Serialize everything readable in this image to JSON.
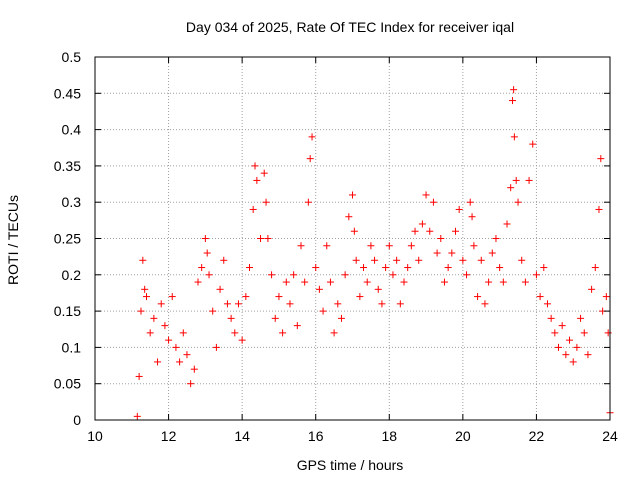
{
  "chart_data": {
    "type": "scatter",
    "title": "Day 034 of 2025, Rate Of TEC Index for receiver iqal",
    "xlabel": "GPS time / hours",
    "ylabel": "ROTI / TECUs",
    "xlim": [
      10,
      24
    ],
    "ylim": [
      0,
      0.5
    ],
    "x_ticks": [
      10,
      12,
      14,
      16,
      18,
      20,
      22,
      24
    ],
    "x_tick_labels": [
      "10",
      "12",
      "14",
      "16",
      "18",
      "20",
      "22",
      "24"
    ],
    "y_ticks": [
      0,
      0.05,
      0.1,
      0.15,
      0.2,
      0.25,
      0.3,
      0.35,
      0.4,
      0.45,
      0.5
    ],
    "y_tick_labels": [
      "0",
      "0.05",
      "0.1",
      "0.15",
      "0.2",
      "0.25",
      "0.3",
      "0.35",
      "0.4",
      "0.45",
      "0.5"
    ],
    "grid": true,
    "marker": "+",
    "series": [
      {
        "name": "ROTI",
        "color": "#ff0000",
        "points": [
          [
            11.15,
            0.005
          ],
          [
            11.2,
            0.06
          ],
          [
            11.25,
            0.15
          ],
          [
            11.3,
            0.22
          ],
          [
            11.35,
            0.18
          ],
          [
            11.4,
            0.17
          ],
          [
            11.5,
            0.12
          ],
          [
            11.6,
            0.14
          ],
          [
            11.7,
            0.08
          ],
          [
            11.8,
            0.16
          ],
          [
            11.9,
            0.13
          ],
          [
            12.0,
            0.11
          ],
          [
            12.1,
            0.17
          ],
          [
            12.2,
            0.1
          ],
          [
            12.3,
            0.08
          ],
          [
            12.4,
            0.12
          ],
          [
            12.5,
            0.09
          ],
          [
            12.6,
            0.05
          ],
          [
            12.7,
            0.07
          ],
          [
            12.8,
            0.19
          ],
          [
            12.9,
            0.21
          ],
          [
            13.0,
            0.25
          ],
          [
            13.05,
            0.23
          ],
          [
            13.1,
            0.2
          ],
          [
            13.2,
            0.15
          ],
          [
            13.3,
            0.1
          ],
          [
            13.4,
            0.18
          ],
          [
            13.5,
            0.22
          ],
          [
            13.6,
            0.16
          ],
          [
            13.7,
            0.14
          ],
          [
            13.8,
            0.12
          ],
          [
            13.9,
            0.16
          ],
          [
            14.0,
            0.11
          ],
          [
            14.1,
            0.17
          ],
          [
            14.2,
            0.21
          ],
          [
            14.3,
            0.29
          ],
          [
            14.35,
            0.35
          ],
          [
            14.4,
            0.33
          ],
          [
            14.5,
            0.25
          ],
          [
            14.6,
            0.34
          ],
          [
            14.65,
            0.3
          ],
          [
            14.7,
            0.25
          ],
          [
            14.8,
            0.2
          ],
          [
            14.9,
            0.14
          ],
          [
            15.0,
            0.17
          ],
          [
            15.1,
            0.12
          ],
          [
            15.2,
            0.19
          ],
          [
            15.3,
            0.16
          ],
          [
            15.4,
            0.2
          ],
          [
            15.5,
            0.13
          ],
          [
            15.6,
            0.24
          ],
          [
            15.7,
            0.19
          ],
          [
            15.8,
            0.3
          ],
          [
            15.85,
            0.36
          ],
          [
            15.9,
            0.39
          ],
          [
            16.0,
            0.21
          ],
          [
            16.1,
            0.18
          ],
          [
            16.2,
            0.15
          ],
          [
            16.3,
            0.24
          ],
          [
            16.4,
            0.19
          ],
          [
            16.5,
            0.12
          ],
          [
            16.6,
            0.16
          ],
          [
            16.7,
            0.14
          ],
          [
            16.8,
            0.2
          ],
          [
            16.9,
            0.28
          ],
          [
            17.0,
            0.31
          ],
          [
            17.05,
            0.26
          ],
          [
            17.1,
            0.22
          ],
          [
            17.2,
            0.17
          ],
          [
            17.3,
            0.21
          ],
          [
            17.4,
            0.19
          ],
          [
            17.5,
            0.24
          ],
          [
            17.6,
            0.22
          ],
          [
            17.7,
            0.18
          ],
          [
            17.8,
            0.16
          ],
          [
            17.9,
            0.21
          ],
          [
            18.0,
            0.24
          ],
          [
            18.1,
            0.2
          ],
          [
            18.2,
            0.22
          ],
          [
            18.3,
            0.16
          ],
          [
            18.4,
            0.19
          ],
          [
            18.5,
            0.21
          ],
          [
            18.6,
            0.24
          ],
          [
            18.7,
            0.26
          ],
          [
            18.8,
            0.22
          ],
          [
            18.9,
            0.27
          ],
          [
            19.0,
            0.31
          ],
          [
            19.1,
            0.26
          ],
          [
            19.2,
            0.3
          ],
          [
            19.3,
            0.23
          ],
          [
            19.4,
            0.25
          ],
          [
            19.5,
            0.19
          ],
          [
            19.6,
            0.21
          ],
          [
            19.7,
            0.23
          ],
          [
            19.8,
            0.26
          ],
          [
            19.9,
            0.29
          ],
          [
            20.0,
            0.22
          ],
          [
            20.1,
            0.2
          ],
          [
            20.2,
            0.3
          ],
          [
            20.25,
            0.28
          ],
          [
            20.3,
            0.24
          ],
          [
            20.4,
            0.17
          ],
          [
            20.5,
            0.22
          ],
          [
            20.6,
            0.16
          ],
          [
            20.7,
            0.19
          ],
          [
            20.8,
            0.23
          ],
          [
            20.9,
            0.25
          ],
          [
            21.0,
            0.21
          ],
          [
            21.1,
            0.19
          ],
          [
            21.2,
            0.27
          ],
          [
            21.3,
            0.32
          ],
          [
            21.35,
            0.44
          ],
          [
            21.38,
            0.455
          ],
          [
            21.4,
            0.39
          ],
          [
            21.45,
            0.33
          ],
          [
            21.5,
            0.3
          ],
          [
            21.6,
            0.22
          ],
          [
            21.7,
            0.19
          ],
          [
            21.8,
            0.33
          ],
          [
            21.9,
            0.38
          ],
          [
            22.0,
            0.2
          ],
          [
            22.1,
            0.17
          ],
          [
            22.2,
            0.21
          ],
          [
            22.3,
            0.16
          ],
          [
            22.4,
            0.14
          ],
          [
            22.5,
            0.12
          ],
          [
            22.6,
            0.1
          ],
          [
            22.7,
            0.13
          ],
          [
            22.8,
            0.09
          ],
          [
            22.9,
            0.11
          ],
          [
            23.0,
            0.08
          ],
          [
            23.1,
            0.1
          ],
          [
            23.2,
            0.14
          ],
          [
            23.3,
            0.12
          ],
          [
            23.4,
            0.09
          ],
          [
            23.5,
            0.18
          ],
          [
            23.6,
            0.21
          ],
          [
            23.7,
            0.29
          ],
          [
            23.75,
            0.36
          ],
          [
            23.8,
            0.15
          ],
          [
            23.9,
            0.17
          ],
          [
            23.95,
            0.12
          ],
          [
            24.0,
            0.01
          ]
        ]
      }
    ]
  }
}
